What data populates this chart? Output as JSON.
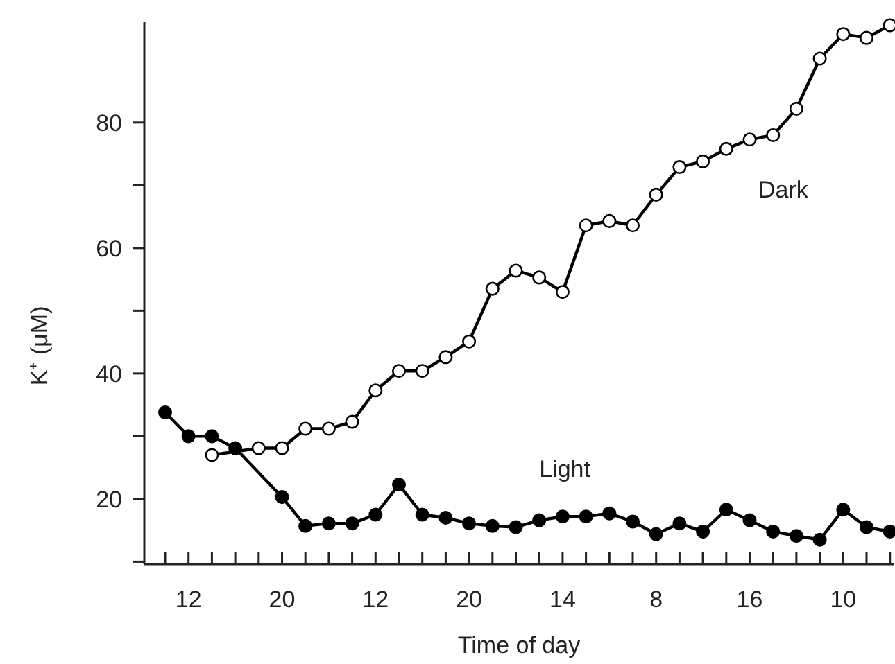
{
  "chart_data": {
    "type": "line",
    "xlabel": "Time of day",
    "ylabel": "K⁺ (μM)",
    "categories": [
      null,
      "12",
      null,
      null,
      null,
      "20",
      null,
      null,
      null,
      "12",
      null,
      null,
      null,
      "20",
      null,
      null,
      null,
      "14",
      null,
      null,
      null,
      "8",
      null,
      null,
      null,
      "16",
      null,
      null,
      null,
      "10",
      null,
      null
    ],
    "ylim": [
      9.6,
      96
    ],
    "yticks": [
      {
        "value": 10,
        "label": null
      },
      20,
      {
        "value": 30,
        "label": null
      },
      40,
      {
        "value": 50,
        "label": null
      },
      60,
      {
        "value": 70,
        "label": null
      },
      80
    ],
    "marker": "circle",
    "series": [
      {
        "name": "Light",
        "color": "#000000",
        "values": [
          33.8,
          30.0,
          30.0,
          28.1,
          null,
          20.3,
          15.7,
          16.1,
          16.1,
          17.5,
          22.3,
          17.5,
          17.0,
          16.1,
          15.7,
          15.5,
          16.6,
          17.2,
          17.2,
          17.7,
          16.4,
          14.4,
          16.1,
          14.8,
          18.3,
          16.6,
          14.8,
          14.1,
          13.5,
          18.3,
          15.5,
          14.8
        ]
      },
      {
        "name": "Dark",
        "color": "#000000",
        "values": [
          null,
          null,
          27.0,
          null,
          28.1,
          28.1,
          31.2,
          31.2,
          32.3,
          37.3,
          40.4,
          40.4,
          42.6,
          45.1,
          53.5,
          56.4,
          55.3,
          53.0,
          63.6,
          64.3,
          63.6,
          68.5,
          72.9,
          73.8,
          75.8,
          77.3,
          78.0,
          82.2,
          90.2,
          94.1,
          93.5,
          95.5
        ]
      }
    ]
  }
}
